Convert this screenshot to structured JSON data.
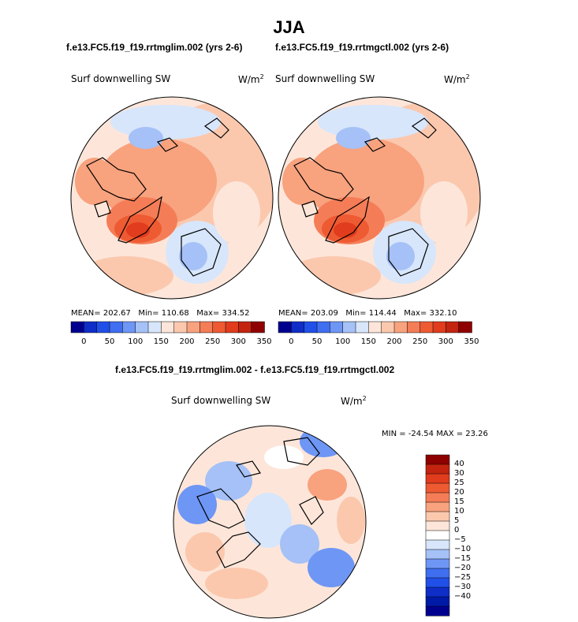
{
  "title": "JJA",
  "panels": [
    {
      "case": "f.e13.FC5.f19_f19.rrtmglim.002 (yrs 2-6)",
      "variable": "Surf downwelling SW",
      "units": "W/m",
      "units_sup": "2",
      "mean_label": "MEAN=",
      "mean": "202.67",
      "min_label": "Min=",
      "min": "110.68",
      "max_label": "Max=",
      "max": "334.52"
    },
    {
      "case": "f.e13.FC5.f19_f19.rrtmgctl.002 (yrs 2-6)",
      "variable": "Surf downwelling SW",
      "units": "W/m",
      "units_sup": "2",
      "mean_label": "MEAN=",
      "mean": "203.09",
      "min_label": "Min=",
      "min": "114.44",
      "max_label": "Max=",
      "max": "332.10"
    }
  ],
  "colorbar": {
    "colors": [
      "#00008f",
      "#0f2ec8",
      "#2050e8",
      "#3f6ef0",
      "#6e96f5",
      "#a5c1f7",
      "#d7e6fb",
      "#fde6d9",
      "#fbc8ae",
      "#f8a27e",
      "#f47d57",
      "#ee5a32",
      "#e03c1d",
      "#c3240f",
      "#8f0000"
    ],
    "ticks": [
      "0",
      "50",
      "100",
      "150",
      "200",
      "250",
      "300",
      "350"
    ]
  },
  "difference": {
    "title": "f.e13.FC5.f19_f19.rrtmglim.002 - f.e13.FC5.f19_f19.rrtmgctl.002",
    "variable": "Surf downwelling SW",
    "units": "W/m",
    "units_sup": "2",
    "min_label": "MIN = ",
    "min": "-24.54",
    "max_label": " MAX = ",
    "max": "23.26",
    "colorbar_colors": [
      "#8f0000",
      "#c3240f",
      "#e03c1d",
      "#ee5a32",
      "#f47d57",
      "#f8a27e",
      "#fbc8ae",
      "#fde6d9",
      "#ffffff",
      "#d7e6fb",
      "#a5c1f7",
      "#6e96f5",
      "#3f6ef0",
      "#2050e8",
      "#0f2ec8",
      "#001aa8",
      "#00008f"
    ],
    "colorbar_ticks": [
      "40",
      "30",
      "25",
      "20",
      "15",
      "10",
      "5",
      "0",
      "−5",
      "−10",
      "−15",
      "−20",
      "−25",
      "−30",
      "−40"
    ]
  }
}
